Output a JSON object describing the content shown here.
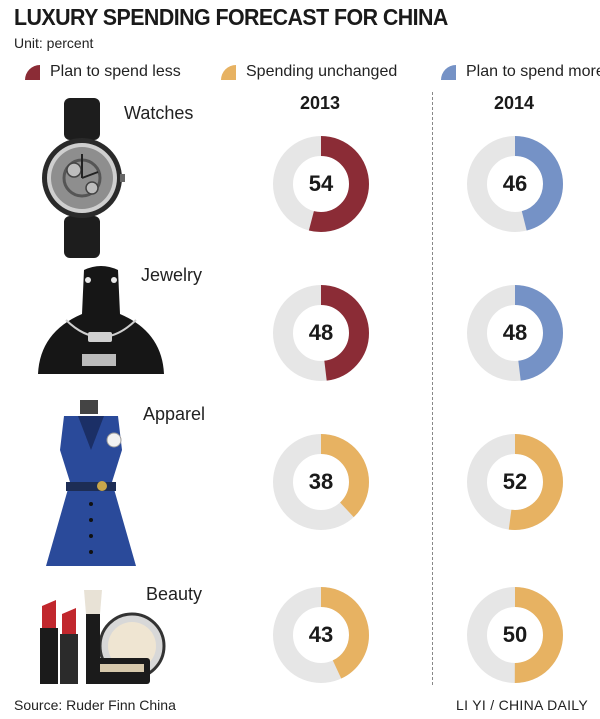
{
  "title": "LUXURY SPENDING FORECAST FOR CHINA",
  "unit": "Unit: percent",
  "colors": {
    "less": "#8b2c36",
    "unchanged": "#e7b262",
    "more": "#7592c6",
    "track": "#e6e6e6"
  },
  "legend": [
    {
      "key": "less",
      "label": "Plan to spend less"
    },
    {
      "key": "unchanged",
      "label": "Spending unchanged"
    },
    {
      "key": "more",
      "label": "Plan to spend more"
    }
  ],
  "source": "Source: Ruder Finn China",
  "credit": "LI YI / CHINA DAILY",
  "chart_data": {
    "type": "pie",
    "years": [
      "2013",
      "2014"
    ],
    "categories": [
      "Watches",
      "Jewelry",
      "Apparel",
      "Beauty"
    ],
    "values": [
      [
        {
          "value": 54,
          "series": "less"
        },
        {
          "value": 46,
          "series": "more"
        }
      ],
      [
        {
          "value": 48,
          "series": "less"
        },
        {
          "value": 48,
          "series": "more"
        }
      ],
      [
        {
          "value": 38,
          "series": "unchanged"
        },
        {
          "value": 52,
          "series": "unchanged"
        }
      ],
      [
        {
          "value": 43,
          "series": "unchanged"
        },
        {
          "value": 50,
          "series": "unchanged"
        }
      ]
    ]
  }
}
